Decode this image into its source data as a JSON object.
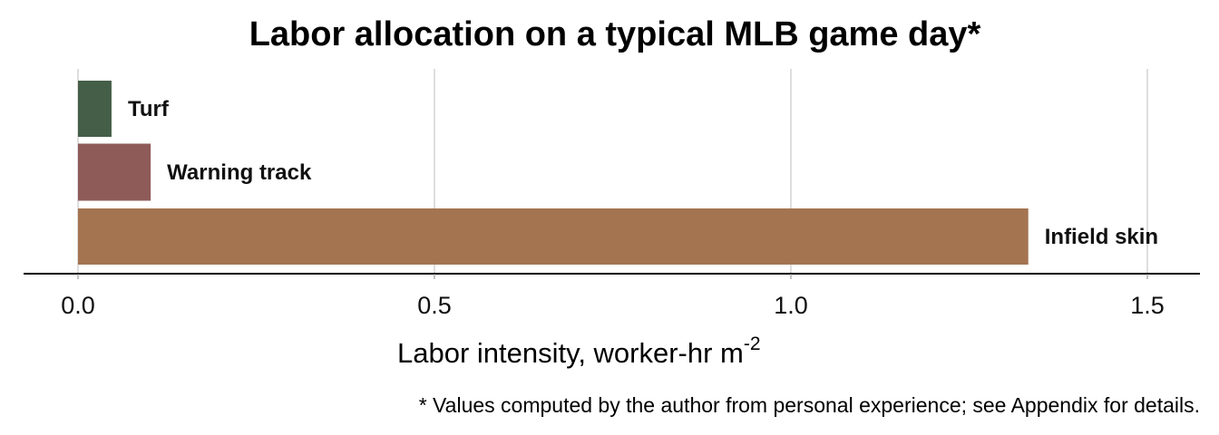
{
  "chart_data": {
    "type": "bar",
    "orientation": "horizontal",
    "title": "Labor allocation on a typical MLB game day*",
    "xlabel": "Labor intensity, worker-hr m",
    "xlabel_superscript": "-2",
    "ylabel": "",
    "footnote": "* Values computed by the author from personal experience; see Appendix for details.",
    "categories": [
      "Turf",
      "Warning track",
      "Infield skin"
    ],
    "values": [
      0.047,
      0.102,
      1.333
    ],
    "colors": [
      "#445e47",
      "#8f5b59",
      "#a47450"
    ],
    "xlim": [
      0,
      1.55
    ],
    "xticks": [
      0.0,
      0.5,
      1.0,
      1.5
    ],
    "xtick_labels": [
      "0.0",
      "0.5",
      "1.0",
      "1.5"
    ],
    "grid": "vertical",
    "legend": "none"
  }
}
